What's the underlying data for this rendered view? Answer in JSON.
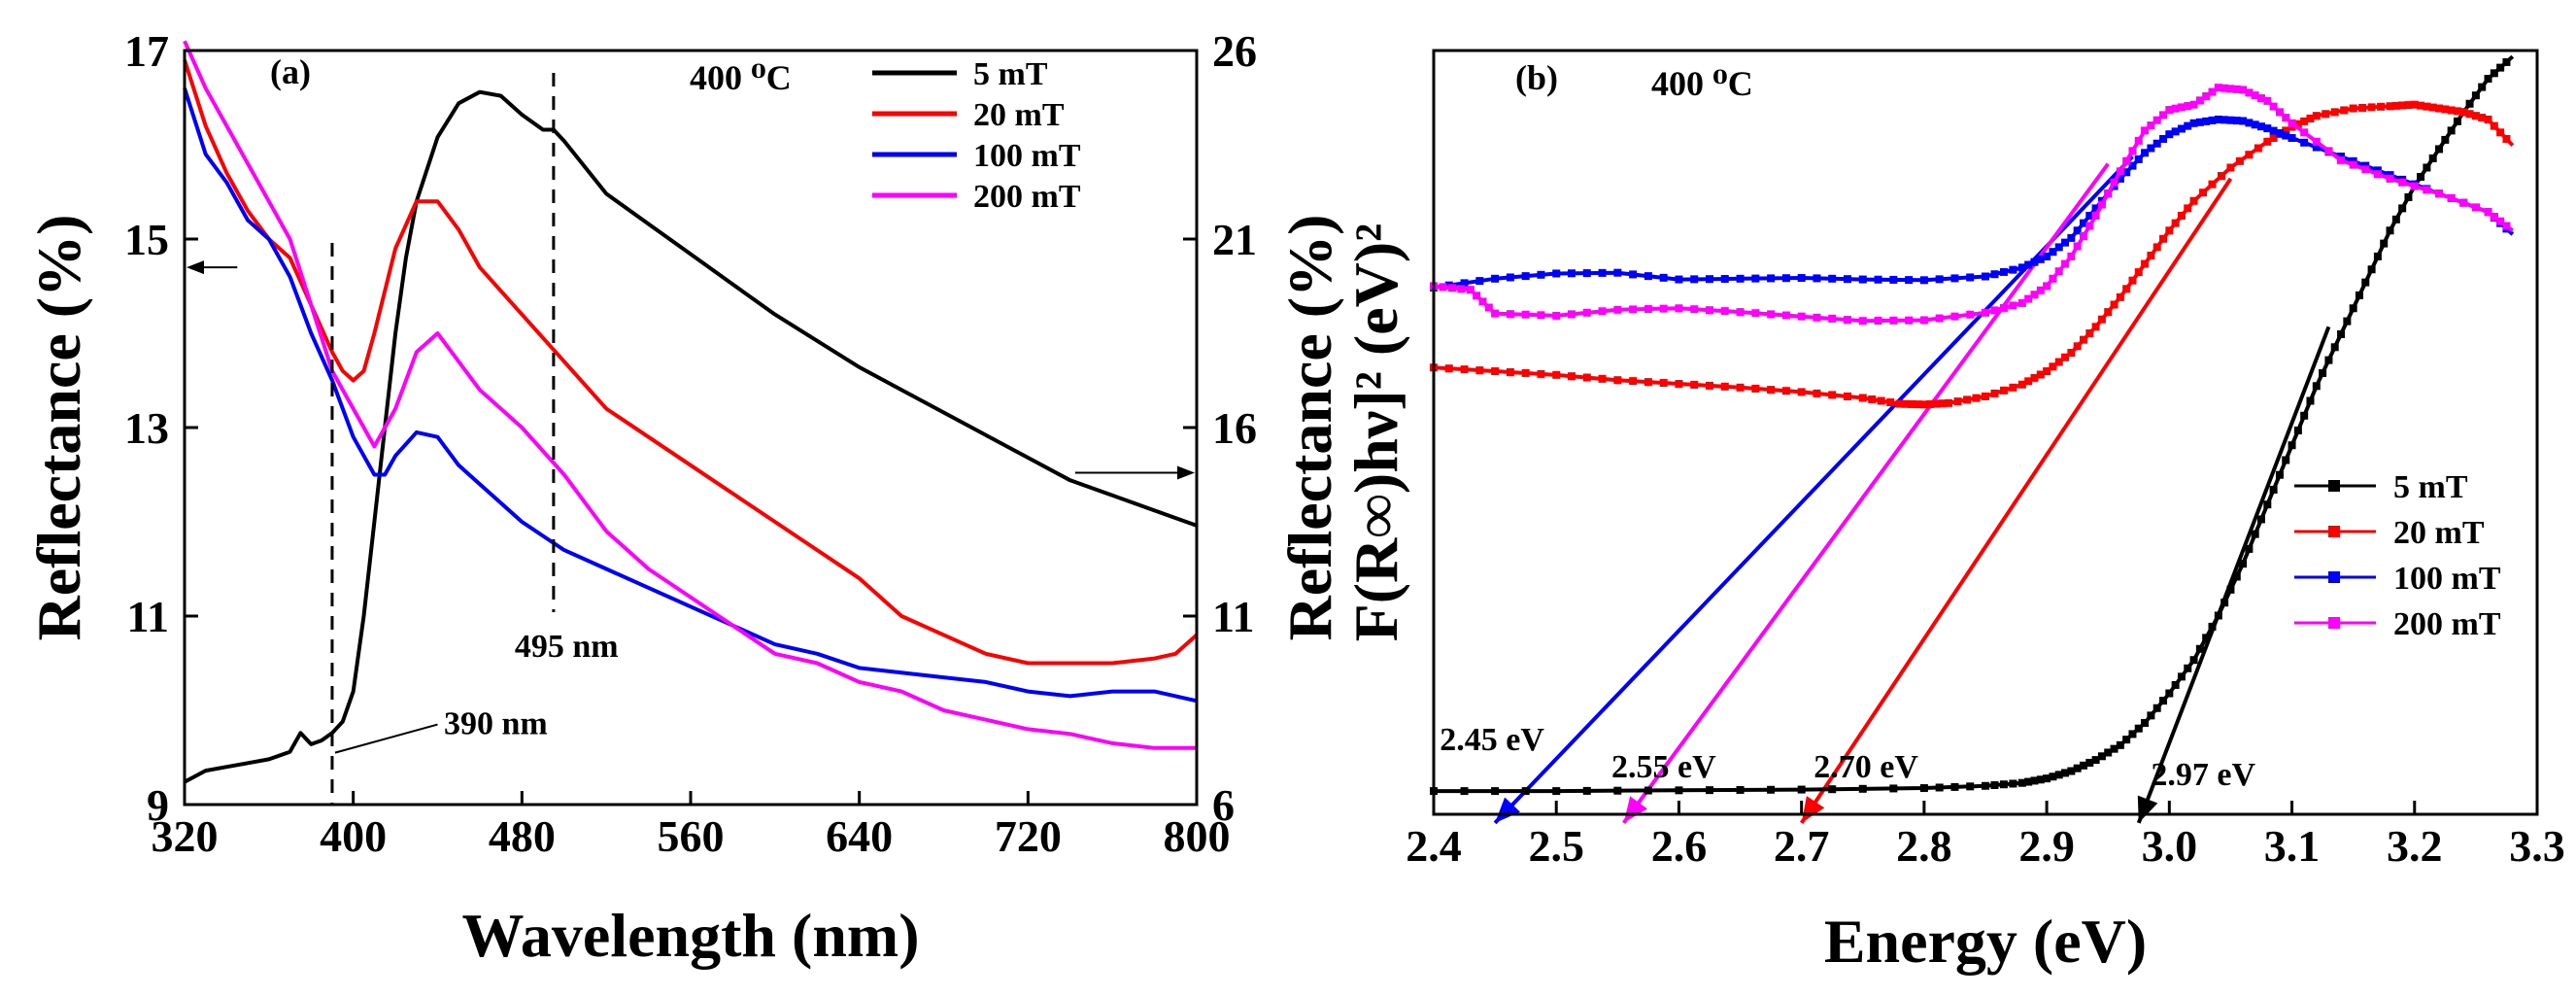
{
  "chart_data": [
    {
      "type": "line",
      "panel_label": "(a)",
      "temperature_label": "400 ⁰C",
      "xlabel": "Wavelength (nm)",
      "ylabel_left": "Reflectance (%)",
      "ylabel_right": "Reflectance (%)",
      "xlim": [
        320,
        800
      ],
      "ylim_left": [
        9,
        17
      ],
      "ylim_right": [
        6,
        26
      ],
      "x_ticks": [
        "320",
        "400",
        "480",
        "560",
        "640",
        "720",
        "800"
      ],
      "y_ticks_left": [
        "9",
        "11",
        "13",
        "15",
        "17"
      ],
      "y_ticks_right": [
        "6",
        "11",
        "16",
        "21",
        "26"
      ],
      "legend_position": "top-right",
      "annotations": [
        {
          "text": "390 nm",
          "x": 390
        },
        {
          "text": "495 nm",
          "x": 495
        }
      ],
      "axis_arrows": [
        {
          "points_to": "left axis",
          "x": 345,
          "y": 14.7
        },
        {
          "points_to": "right axis",
          "x": 770,
          "y": 14.8
        }
      ],
      "series": [
        {
          "name": "5 mT",
          "color": "#000000",
          "axis": "right",
          "x": [
            320,
            330,
            340,
            350,
            360,
            370,
            375,
            380,
            385,
            390,
            395,
            400,
            405,
            410,
            415,
            420,
            425,
            430,
            440,
            450,
            460,
            470,
            480,
            490,
            495,
            500,
            520,
            540,
            560,
            580,
            600,
            620,
            640,
            660,
            680,
            700,
            720,
            740,
            760,
            780,
            800
          ],
          "y": [
            6.6,
            6.9,
            7.0,
            7.1,
            7.2,
            7.4,
            7.9,
            7.6,
            7.7,
            7.9,
            8.2,
            9.0,
            11.0,
            13.5,
            16.0,
            18.5,
            20.5,
            22.0,
            23.7,
            24.6,
            24.9,
            24.8,
            24.3,
            23.9,
            23.9,
            23.6,
            22.2,
            21.4,
            20.6,
            19.8,
            19.0,
            18.3,
            17.6,
            17.0,
            16.4,
            15.8,
            15.2,
            14.6,
            14.2,
            13.8,
            13.4
          ]
        },
        {
          "name": "20 mT",
          "color": "#ff0000",
          "axis": "left",
          "x": [
            320,
            330,
            340,
            350,
            360,
            370,
            380,
            390,
            395,
            400,
            405,
            410,
            420,
            430,
            440,
            450,
            460,
            480,
            500,
            520,
            540,
            560,
            580,
            600,
            620,
            640,
            660,
            680,
            700,
            720,
            740,
            760,
            780,
            790,
            800
          ],
          "y": [
            16.9,
            16.2,
            15.7,
            15.3,
            15.0,
            14.8,
            14.3,
            13.8,
            13.6,
            13.5,
            13.6,
            14.0,
            14.9,
            15.4,
            15.4,
            15.1,
            14.7,
            14.2,
            13.7,
            13.2,
            12.9,
            12.6,
            12.3,
            12.0,
            11.7,
            11.4,
            11.0,
            10.8,
            10.6,
            10.5,
            10.5,
            10.5,
            10.55,
            10.6,
            10.8
          ]
        },
        {
          "name": "100 mT",
          "color": "#0000ff",
          "axis": "left",
          "x": [
            320,
            330,
            340,
            350,
            360,
            370,
            380,
            390,
            400,
            410,
            415,
            420,
            430,
            440,
            450,
            460,
            480,
            500,
            520,
            540,
            560,
            580,
            600,
            620,
            640,
            660,
            680,
            700,
            720,
            740,
            760,
            780,
            800
          ],
          "y": [
            16.6,
            15.9,
            15.6,
            15.2,
            15.0,
            14.6,
            14.0,
            13.5,
            12.9,
            12.5,
            12.5,
            12.7,
            12.95,
            12.9,
            12.6,
            12.4,
            12.0,
            11.7,
            11.5,
            11.3,
            11.1,
            10.9,
            10.7,
            10.6,
            10.45,
            10.4,
            10.35,
            10.3,
            10.2,
            10.15,
            10.2,
            10.2,
            10.1
          ]
        },
        {
          "name": "200 mT",
          "color": "#ff00ff",
          "axis": "left",
          "x": [
            320,
            330,
            340,
            350,
            360,
            370,
            380,
            390,
            400,
            410,
            420,
            430,
            440,
            450,
            460,
            480,
            500,
            520,
            540,
            560,
            580,
            600,
            620,
            640,
            660,
            680,
            700,
            720,
            740,
            760,
            780,
            800
          ],
          "y": [
            17.1,
            16.6,
            16.2,
            15.8,
            15.4,
            15.0,
            14.3,
            13.6,
            13.2,
            12.8,
            13.2,
            13.8,
            14.0,
            13.7,
            13.4,
            13.0,
            12.5,
            11.9,
            11.5,
            11.2,
            10.9,
            10.6,
            10.5,
            10.3,
            10.2,
            10.0,
            9.9,
            9.8,
            9.75,
            9.65,
            9.6,
            9.6
          ]
        }
      ]
    },
    {
      "type": "line",
      "panel_label": "(b)",
      "temperature_label": "400 ⁰C",
      "xlabel": "Energy (eV)",
      "ylabel": "F(R∞)hν]² (eV)²",
      "xlim": [
        2.4,
        3.3
      ],
      "ylim": [
        0,
        100
      ],
      "x_ticks": [
        "2.4",
        "2.5",
        "2.6",
        "2.7",
        "2.8",
        "2.9",
        "3.0",
        "3.1",
        "3.2",
        "3.3"
      ],
      "y_ticks": [],
      "legend_position": "bottom-right",
      "annotations": [
        {
          "text": "2.45 eV",
          "x": 2.45
        },
        {
          "text": "2.55 eV",
          "x": 2.55
        },
        {
          "text": "2.70 eV",
          "x": 2.7
        },
        {
          "text": "2.97 eV",
          "x": 2.97
        }
      ],
      "tangent_lines": [
        {
          "series": "100 mT",
          "color": "#0000ff",
          "x0": 2.45,
          "y0": -3,
          "x1": 2.97,
          "y1": 87
        },
        {
          "series": "200 mT",
          "color": "#ff00ff",
          "x0": 2.555,
          "y0": -3,
          "x1": 2.95,
          "y1": 86
        },
        {
          "series": "20 mT",
          "color": "#ff0000",
          "x0": 2.7,
          "y0": -3,
          "x1": 3.05,
          "y1": 84
        },
        {
          "series": "5 mT",
          "color": "#000000",
          "x0": 2.975,
          "y0": -3,
          "x1": 3.13,
          "y1": 64
        }
      ],
      "series": [
        {
          "name": "5 mT",
          "color": "#000000",
          "x": [
            2.4,
            2.5,
            2.6,
            2.7,
            2.8,
            2.85,
            2.88,
            2.9,
            2.92,
            2.94,
            2.96,
            2.98,
            3.0,
            3.02,
            3.04,
            3.06,
            3.08,
            3.1,
            3.12,
            3.14,
            3.16,
            3.18,
            3.2,
            3.22,
            3.24,
            3.26,
            3.28
          ],
          "y": [
            1.3,
            1.3,
            1.4,
            1.5,
            1.7,
            2.0,
            2.4,
            3.0,
            4.0,
            5.5,
            7.5,
            10.5,
            14.5,
            19.0,
            25.0,
            32.0,
            40.0,
            48.0,
            56.0,
            63.0,
            70.0,
            77.0,
            83.0,
            88.0,
            93.0,
            97.5,
            100.5
          ]
        },
        {
          "name": "20 mT",
          "color": "#ff0000",
          "x": [
            2.4,
            2.45,
            2.5,
            2.55,
            2.6,
            2.65,
            2.7,
            2.75,
            2.78,
            2.8,
            2.82,
            2.85,
            2.88,
            2.9,
            2.92,
            2.94,
            2.96,
            2.98,
            3.0,
            3.02,
            3.05,
            3.08,
            3.1,
            3.12,
            3.15,
            3.18,
            3.2,
            3.22,
            3.24,
            3.26,
            3.28
          ],
          "y": [
            58.5,
            58.0,
            57.5,
            56.8,
            56.3,
            55.8,
            55.2,
            54.4,
            53.6,
            53.5,
            53.7,
            54.6,
            56.2,
            58.0,
            60.5,
            64.0,
            68.0,
            72.5,
            77.0,
            81.0,
            85.5,
            89.0,
            91.0,
            92.5,
            93.5,
            93.8,
            94.0,
            93.5,
            93.0,
            92.0,
            88.5
          ]
        },
        {
          "name": "100 mT",
          "color": "#0000ff",
          "x": [
            2.4,
            2.45,
            2.5,
            2.55,
            2.6,
            2.65,
            2.7,
            2.75,
            2.8,
            2.85,
            2.88,
            2.9,
            2.92,
            2.94,
            2.96,
            2.98,
            3.0,
            3.02,
            3.04,
            3.06,
            3.08,
            3.1,
            3.14,
            3.18,
            3.22,
            3.26,
            3.28
          ],
          "y": [
            69.3,
            70.5,
            71.2,
            71.3,
            70.4,
            70.5,
            70.6,
            70.4,
            70.3,
            70.8,
            72.0,
            73.5,
            76.0,
            80.0,
            84.0,
            87.5,
            90.0,
            91.5,
            92.0,
            91.8,
            90.8,
            89.5,
            87.0,
            84.5,
            82.0,
            79.5,
            76.5
          ]
        },
        {
          "name": "200 mT",
          "color": "#ff00ff",
          "x": [
            2.4,
            2.43,
            2.45,
            2.5,
            2.55,
            2.6,
            2.65,
            2.7,
            2.75,
            2.8,
            2.85,
            2.88,
            2.9,
            2.92,
            2.94,
            2.96,
            2.98,
            3.0,
            3.02,
            3.04,
            3.06,
            3.08,
            3.1,
            3.14,
            3.18,
            3.22,
            3.26,
            3.28
          ],
          "y": [
            69.5,
            69.0,
            65.8,
            65.5,
            66.3,
            66.5,
            66.0,
            65.4,
            64.8,
            64.9,
            65.9,
            67.2,
            69.5,
            73.5,
            79.0,
            85.0,
            90.5,
            93.3,
            94.0,
            96.3,
            96.0,
            94.5,
            91.5,
            86.5,
            84.0,
            82.0,
            79.5,
            77.0
          ]
        }
      ]
    }
  ]
}
